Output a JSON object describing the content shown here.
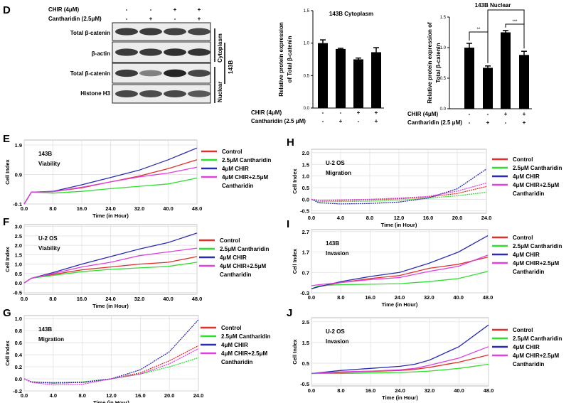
{
  "panels": {
    "D": "D",
    "E": "E",
    "F": "F",
    "G": "G",
    "H": "H",
    "I": "I",
    "J": "J"
  },
  "western_blot": {
    "treatment_rows": [
      {
        "label": "CHIR  (4μM)",
        "signs": [
          "-",
          "-",
          "+",
          "+"
        ]
      },
      {
        "label": "Cantharidin (2.5μM)",
        "signs": [
          "-",
          "+",
          "-",
          "+"
        ]
      }
    ],
    "bands": [
      "Total  β-catenin",
      "β-actin",
      "Total  β-catenin",
      "Histone H3"
    ],
    "fractions": [
      "Cytoplasm",
      "Nuclear"
    ],
    "cell_line": "143B",
    "band_intensity": [
      [
        0.85,
        0.85,
        0.82,
        0.8
      ],
      [
        0.85,
        0.85,
        0.9,
        0.88
      ],
      [
        0.85,
        0.55,
        0.95,
        0.8
      ],
      [
        0.8,
        0.78,
        0.8,
        0.72
      ]
    ]
  },
  "chart_data": [
    {
      "id": "cyto",
      "type": "bar",
      "title": "143B Cytoplasm",
      "ylabel": [
        "Relative protein expression",
        "of Total β-catenin"
      ],
      "ylim": [
        0,
        1.5
      ],
      "yticks": [
        "0.0",
        "0.5",
        "1.0",
        "1.5"
      ],
      "values": [
        1.0,
        0.91,
        0.75,
        0.86
      ],
      "errors": [
        0.05,
        0.01,
        0.02,
        0.07
      ],
      "treatments": [
        {
          "label": "CHIR (4μM)",
          "signs": [
            "-",
            "-",
            "+",
            "+"
          ]
        },
        {
          "label": "Cantharidin (2.5 μM)",
          "signs": [
            "-",
            "+",
            "-",
            "+"
          ]
        }
      ],
      "significance": [],
      "color": "#000000"
    },
    {
      "id": "nuc",
      "type": "bar",
      "title": "143B Nuclear",
      "ylabel": [
        "Relative protein expression of",
        "Total β-catenin"
      ],
      "ylim": [
        0,
        1.5
      ],
      "yticks": [
        "0.0",
        "0.5",
        "1.0",
        "1.5"
      ],
      "values": [
        1.0,
        0.67,
        1.25,
        0.88
      ],
      "errors": [
        0.07,
        0.03,
        0.03,
        0.06
      ],
      "treatments": [
        {
          "label": "CHIR (4μM)",
          "signs": [
            "-",
            "-",
            "+",
            "+"
          ]
        },
        {
          "label": "Cantharidin (2.5 μM)",
          "signs": [
            "-",
            "+",
            "-",
            "+"
          ]
        }
      ],
      "significance": [
        {
          "from": 0,
          "to": 1,
          "label": "**"
        },
        {
          "from": 1,
          "to": 3,
          "label": "**"
        },
        {
          "from": 2,
          "to": 3,
          "label": "***"
        }
      ],
      "color": "#000000"
    },
    {
      "id": "E",
      "type": "line",
      "annotation": [
        "143B",
        "Viability"
      ],
      "xlabel": "Time (in Hour)",
      "ylabel": "Cell Index",
      "xlim": [
        0,
        48
      ],
      "ylim": [
        -0.1,
        2.07
      ],
      "xticks": [
        "0.0",
        "8.0",
        "16.0",
        "24.0",
        "32.0",
        "40.0",
        "48.0"
      ],
      "yticks": [
        "-0.1",
        "0.9",
        "1.9"
      ],
      "x": [
        0,
        2,
        8,
        16,
        24,
        32,
        40,
        48
      ],
      "series": [
        {
          "name": "Control",
          "color": "#e0302a",
          "values": [
            -0.1,
            0.3,
            0.32,
            0.45,
            0.65,
            0.85,
            1.1,
            1.4
          ]
        },
        {
          "name": "2.5μM Cantharidin",
          "color": "#2ee02e",
          "values": [
            -0.1,
            0.3,
            0.27,
            0.33,
            0.42,
            0.5,
            0.58,
            0.78
          ]
        },
        {
          "name": "4μM CHIR",
          "color": "#2b2bb0",
          "values": [
            -0.1,
            0.3,
            0.33,
            0.55,
            0.8,
            1.05,
            1.4,
            1.8
          ]
        },
        {
          "name": "4μM CHIR+2.5μM",
          "name2": "Cantharidin",
          "color": "#e040e0",
          "values": [
            -0.1,
            0.3,
            0.32,
            0.47,
            0.65,
            0.82,
            0.95,
            1.15
          ]
        }
      ]
    },
    {
      "id": "F",
      "type": "line",
      "annotation": [
        "U-2 OS",
        "Viability"
      ],
      "xlabel": "Time (in Hour)",
      "ylabel": "Cell Index",
      "xlim": [
        0,
        48
      ],
      "ylim": [
        -0.6,
        3.1
      ],
      "xticks": [
        "0.0",
        "8.0",
        "16.0",
        "24.0",
        "32.0",
        "40.0",
        "48.0"
      ],
      "yticks": [
        "-0.5",
        "0.0",
        "0.5",
        "1.0",
        "1.5",
        "2.0",
        "2.5",
        "3.0"
      ],
      "x": [
        0,
        2,
        8,
        16,
        24,
        32,
        40,
        48
      ],
      "series": [
        {
          "name": "Control",
          "color": "#e0302a",
          "values": [
            0,
            0.25,
            0.45,
            0.7,
            0.85,
            1.0,
            1.1,
            1.4
          ]
        },
        {
          "name": "2.5μM Cantharidin",
          "color": "#2ee02e",
          "values": [
            0,
            0.25,
            0.4,
            0.6,
            0.72,
            0.8,
            0.88,
            1.1
          ]
        },
        {
          "name": "4μM CHIR",
          "color": "#2b2bb0",
          "values": [
            0,
            0.25,
            0.55,
            1.0,
            1.4,
            1.8,
            2.15,
            2.65
          ]
        },
        {
          "name": "4μM CHIR+2.5μM",
          "name2": "Cantharidin",
          "color": "#e040e0",
          "values": [
            0,
            0.25,
            0.5,
            0.85,
            1.1,
            1.45,
            1.65,
            1.85
          ]
        }
      ]
    },
    {
      "id": "G",
      "type": "line",
      "annotation": [
        "143B",
        "Migration"
      ],
      "xlabel": "Time (in Hour)",
      "ylabel": "Cell Index",
      "xlim": [
        0,
        24
      ],
      "ylim": [
        -0.2,
        1.05
      ],
      "xticks": [
        "0.0",
        "4.0",
        "8.0",
        "12.0",
        "16.0",
        "20.0",
        "24.0"
      ],
      "yticks": [
        "-0.2",
        "0.0",
        "0.2",
        "0.4",
        "0.6",
        "0.8",
        "1.0"
      ],
      "x": [
        0,
        1,
        4,
        8,
        12,
        16,
        20,
        24
      ],
      "series": [
        {
          "name": "Control",
          "color": "#e0302a",
          "values": [
            0,
            -0.05,
            -0.07,
            -0.06,
            0.0,
            0.1,
            0.3,
            0.55
          ]
        },
        {
          "name": "2.5μM Cantharidin",
          "color": "#2ee02e",
          "values": [
            0,
            -0.05,
            -0.06,
            -0.05,
            0.0,
            0.08,
            0.2,
            0.35
          ]
        },
        {
          "name": "4μM CHIR",
          "color": "#2b2bb0",
          "values": [
            0,
            -0.05,
            -0.07,
            -0.06,
            0.0,
            0.15,
            0.45,
            0.98
          ]
        },
        {
          "name": "4μM CHIR+2.5μM",
          "name2": "Cantharidin",
          "color": "#e040e0",
          "values": [
            0,
            -0.06,
            -0.1,
            -0.09,
            0.0,
            0.08,
            0.25,
            0.5
          ]
        }
      ]
    },
    {
      "id": "H",
      "type": "line",
      "annotation": [
        "U-2 OS",
        "Migration"
      ],
      "xlabel": "Time (in Hour)",
      "ylabel": "Cell Index",
      "xlim": [
        0,
        24
      ],
      "ylim": [
        -0.6,
        2.15
      ],
      "xticks": [
        "0.0",
        "4.0",
        "8.0",
        "12.0",
        "16.0",
        "20.0",
        "24.0"
      ],
      "yticks": [
        "-0.5",
        "0.0",
        "0.5",
        "1.0",
        "1.5",
        "2.0"
      ],
      "x": [
        0,
        1,
        4,
        8,
        12,
        16,
        20,
        24
      ],
      "series": [
        {
          "name": "Control",
          "color": "#e0302a",
          "values": [
            0,
            -0.05,
            -0.05,
            -0.02,
            0.02,
            0.1,
            0.25,
            0.55
          ]
        },
        {
          "name": "2.5μM Cantharidin",
          "color": "#2ee02e",
          "values": [
            0,
            -0.1,
            -0.1,
            -0.08,
            -0.04,
            0.05,
            0.15,
            0.3
          ]
        },
        {
          "name": "4μM CHIR",
          "color": "#2b2bb0",
          "values": [
            0,
            -0.15,
            -0.2,
            -0.18,
            -0.12,
            0.05,
            0.45,
            1.3
          ]
        },
        {
          "name": "4μM CHIR+2.5μM",
          "name2": "Cantharidin",
          "color": "#e040e0",
          "values": [
            0,
            -0.05,
            -0.03,
            0.0,
            0.05,
            0.12,
            0.35,
            0.7
          ]
        }
      ]
    },
    {
      "id": "I",
      "type": "line",
      "annotation": [
        "143B",
        "Invasion"
      ],
      "xlabel": "Time (in Hour)",
      "ylabel": "Cell Index",
      "xlim": [
        0,
        48
      ],
      "ylim": [
        -0.3,
        2.8
      ],
      "xticks": [
        "0.0",
        "8.0",
        "16.0",
        "24.0",
        "32.0",
        "40.0",
        "48.0"
      ],
      "yticks": [
        "-0.3",
        "0.7",
        "1.7",
        "2.7"
      ],
      "x": [
        0,
        2,
        8,
        16,
        24,
        32,
        40,
        48
      ],
      "series": [
        {
          "name": "Control",
          "color": "#e0302a",
          "values": [
            -0.1,
            0,
            0.2,
            0.4,
            0.55,
            0.9,
            1.1,
            1.45
          ]
        },
        {
          "name": "2.5μM Cantharidin",
          "color": "#2ee02e",
          "values": [
            -0.1,
            0.05,
            0.1,
            0.12,
            0.15,
            0.25,
            0.4,
            0.75
          ]
        },
        {
          "name": "4μM CHIR",
          "color": "#2b2bb0",
          "values": [
            -0.1,
            0,
            0.25,
            0.5,
            0.7,
            1.15,
            1.7,
            2.5
          ]
        },
        {
          "name": "4μM CHIR+2.5μM",
          "name2": "Cantharidin",
          "color": "#e040e0",
          "values": [
            0.05,
            0.1,
            0.2,
            0.35,
            0.45,
            0.75,
            1.0,
            1.55
          ]
        }
      ]
    },
    {
      "id": "J",
      "type": "line",
      "annotation": [
        "U-2 OS",
        "Invasion"
      ],
      "xlabel": "Time (in Hour)",
      "ylabel": "Cell Index",
      "xlim": [
        0,
        48
      ],
      "ylim": [
        -0.6,
        2.7
      ],
      "xticks": [
        "0.0",
        "8.0",
        "16.0",
        "24.0",
        "32.0",
        "40.0",
        "48.0"
      ],
      "yticks": [
        "-0.5",
        "0.5",
        "1.5",
        "2.5"
      ],
      "x": [
        0,
        8,
        16,
        24,
        28,
        32,
        40,
        48
      ],
      "series": [
        {
          "name": "Control",
          "color": "#e0302a",
          "values": [
            0,
            0.05,
            0.1,
            0.15,
            0.2,
            0.3,
            0.55,
            0.9
          ]
        },
        {
          "name": "2.5μM Cantharidin",
          "color": "#2ee02e",
          "values": [
            0,
            0,
            0.03,
            0.05,
            0.08,
            0.12,
            0.25,
            0.45
          ]
        },
        {
          "name": "4μM CHIR",
          "color": "#2b2bb0",
          "values": [
            0,
            0.15,
            0.25,
            0.35,
            0.45,
            0.65,
            1.3,
            2.35
          ]
        },
        {
          "name": "4μM CHIR+2.5μM",
          "name2": "Cantharidin",
          "color": "#e040e0",
          "values": [
            0,
            0.08,
            0.12,
            0.18,
            0.25,
            0.4,
            0.75,
            1.3
          ]
        }
      ]
    }
  ]
}
